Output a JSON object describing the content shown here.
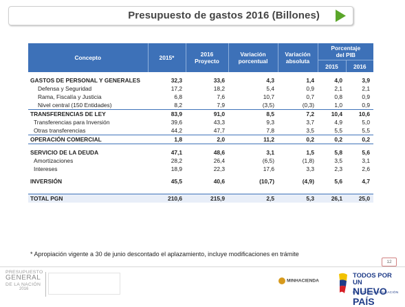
{
  "title": "Presupuesto de gastos 2016 (Billones)",
  "table": {
    "headers": {
      "concepto": "Concepto",
      "y2015": "2015*",
      "proyecto_l1": "2016",
      "proyecto_l2": "Proyecto",
      "var_porc_l1": "Variación",
      "var_porc_l2": "porcentual",
      "var_abs_l1": "Variación",
      "var_abs_l2": "absoluta",
      "pib_l1": "Porcentaje",
      "pib_l2": "del PIB",
      "pib_2015": "2015",
      "pib_2016": "2016"
    },
    "rows": [
      [
        "GASTOS DE PERSONAL Y GENERALES",
        "32,3",
        "33,6",
        "4,3",
        "1,4",
        "4,0",
        "3,9"
      ],
      [
        "Defensa y Seguridad",
        "17,2",
        "18,2",
        "5,4",
        "0,9",
        "2,1",
        "2,1"
      ],
      [
        "Rama, Fiscalía y Justicia",
        "6,8",
        "7,6",
        "10,7",
        "0,7",
        "0,8",
        "0,9"
      ],
      [
        "Nivel central (150 Entidades)",
        "8,2",
        "7,9",
        "(3,5)",
        "(0,3)",
        "1,0",
        "0,9"
      ],
      [
        "TRANSFERENCIAS DE LEY",
        "83,9",
        "91,0",
        "8,5",
        "7,2",
        "10,4",
        "10,6"
      ],
      [
        "Transferencias para Inversión",
        "39,6",
        "43,3",
        "9,3",
        "3,7",
        "4,9",
        "5,0"
      ],
      [
        "Otras transferencias",
        "44,2",
        "47,7",
        "7,8",
        "3,5",
        "5,5",
        "5,5"
      ],
      [
        "OPERACIÓN COMERCIAL",
        "1,8",
        "2,0",
        "11,2",
        "0,2",
        "0,2",
        "0,2"
      ],
      [
        "SERVICIO DE LA DEUDA",
        "47,1",
        "48,6",
        "3,1",
        "1,5",
        "5,8",
        "5,6"
      ],
      [
        "Amortizaciones",
        "28,2",
        "26,4",
        "(6,5)",
        "(1,8)",
        "3,5",
        "3,1"
      ],
      [
        "Intereses",
        "18,9",
        "22,3",
        "17,6",
        "3,3",
        "2,3",
        "2,6"
      ],
      [
        "INVERSIÓN",
        "45,5",
        "40,6",
        "(10,7)",
        "(4,9)",
        "5,6",
        "4,7"
      ],
      [
        "TOTAL PGN",
        "210,6",
        "215,9",
        "2,5",
        "5,3",
        "26,1",
        "25,0"
      ]
    ]
  },
  "footnote": "* Apropiación vigente a 30 de junio descontado el aplazamiento, incluye modificaciones en trámite",
  "page_number": "12",
  "footer": {
    "left_logo": {
      "line1": "PRESUPUESTO",
      "line2": "GENERAL",
      "line3": "DE LA NACIÓN",
      "line4": "2016"
    },
    "ministry": "MINHACIENDA",
    "right_logo": {
      "line1": "TODOS POR UN",
      "line2": "NUEVO PAÍS",
      "line3": "PAZ EQUIDAD EDUCACIÓN"
    }
  },
  "colors": {
    "header_blue": "#3d71b8",
    "accent_green": "#5aa62a",
    "brand_navy": "#1f3c88"
  }
}
